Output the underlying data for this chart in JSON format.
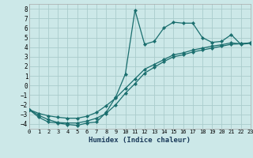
{
  "xlabel": "Humidex (Indice chaleur)",
  "bg_color": "#cce8e8",
  "grid_color": "#aacccc",
  "line_color": "#1a6e6e",
  "x_data": [
    0,
    1,
    2,
    3,
    4,
    5,
    6,
    7,
    8,
    9,
    10,
    11,
    12,
    13,
    14,
    15,
    16,
    17,
    18,
    19,
    20,
    21,
    22,
    23
  ],
  "line1_y": [
    -2.5,
    -3.3,
    -3.8,
    -3.9,
    -4.05,
    -4.15,
    -3.9,
    -3.8,
    -2.8,
    -1.2,
    1.2,
    7.85,
    4.3,
    4.6,
    6.0,
    6.6,
    6.5,
    6.5,
    5.0,
    4.5,
    4.6,
    5.3,
    4.3,
    4.4
  ],
  "line2_y": [
    -2.5,
    -3.1,
    -3.55,
    -3.85,
    -3.9,
    -3.9,
    -3.7,
    -3.4,
    -2.9,
    -2.0,
    -0.8,
    0.2,
    1.3,
    1.9,
    2.5,
    3.0,
    3.2,
    3.5,
    3.7,
    3.9,
    4.1,
    4.3,
    4.35,
    4.45
  ],
  "line3_y": [
    -2.5,
    -2.9,
    -3.15,
    -3.3,
    -3.4,
    -3.4,
    -3.2,
    -2.8,
    -2.1,
    -1.3,
    -0.3,
    0.7,
    1.7,
    2.2,
    2.7,
    3.2,
    3.4,
    3.7,
    3.9,
    4.1,
    4.25,
    4.45,
    4.35,
    4.45
  ],
  "xlim": [
    0,
    23
  ],
  "ylim": [
    -4.5,
    8.5
  ],
  "yticks": [
    -4,
    -3,
    -2,
    -1,
    0,
    1,
    2,
    3,
    4,
    5,
    6,
    7,
    8
  ],
  "xticks": [
    0,
    1,
    2,
    3,
    4,
    5,
    6,
    7,
    8,
    9,
    10,
    11,
    12,
    13,
    14,
    15,
    16,
    17,
    18,
    19,
    20,
    21,
    22,
    23
  ]
}
